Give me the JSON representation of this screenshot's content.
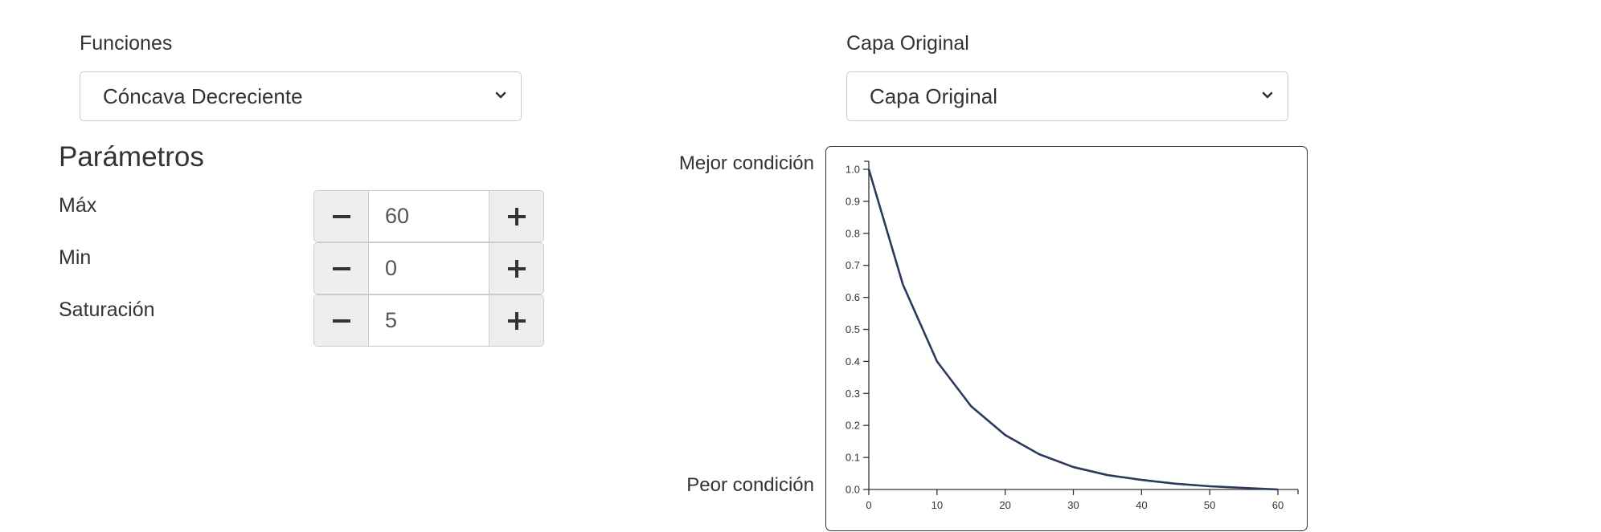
{
  "functions": {
    "label": "Funciones",
    "selected": "Cóncava Decreciente"
  },
  "layer": {
    "label": "Capa Original",
    "selected": "Capa Original"
  },
  "parameters": {
    "title": "Parámetros",
    "items": [
      {
        "label": "Máx",
        "value": "60"
      },
      {
        "label": "Min",
        "value": "0"
      },
      {
        "label": "Saturación",
        "value": "5"
      }
    ]
  },
  "chart_labels": {
    "best": "Mejor condición",
    "worst": "Peor condición"
  },
  "chart_data": {
    "type": "line",
    "xlim": [
      0,
      60
    ],
    "ylim": [
      0,
      1
    ],
    "x_ticks": [
      "0",
      "10",
      "20",
      "30",
      "40",
      "50",
      "60"
    ],
    "y_ticks": [
      "0.0",
      "0.1",
      "0.2",
      "0.3",
      "0.4",
      "0.5",
      "0.6",
      "0.7",
      "0.8",
      "0.9",
      "1.0"
    ],
    "series": [
      {
        "color": "#2b3a5c",
        "x": [
          0,
          5,
          10,
          15,
          20,
          25,
          30,
          35,
          40,
          45,
          50,
          55,
          60
        ],
        "y": [
          1.0,
          0.64,
          0.4,
          0.26,
          0.17,
          0.11,
          0.07,
          0.045,
          0.03,
          0.018,
          0.01,
          0.005,
          0.0
        ]
      }
    ],
    "grid": false
  }
}
